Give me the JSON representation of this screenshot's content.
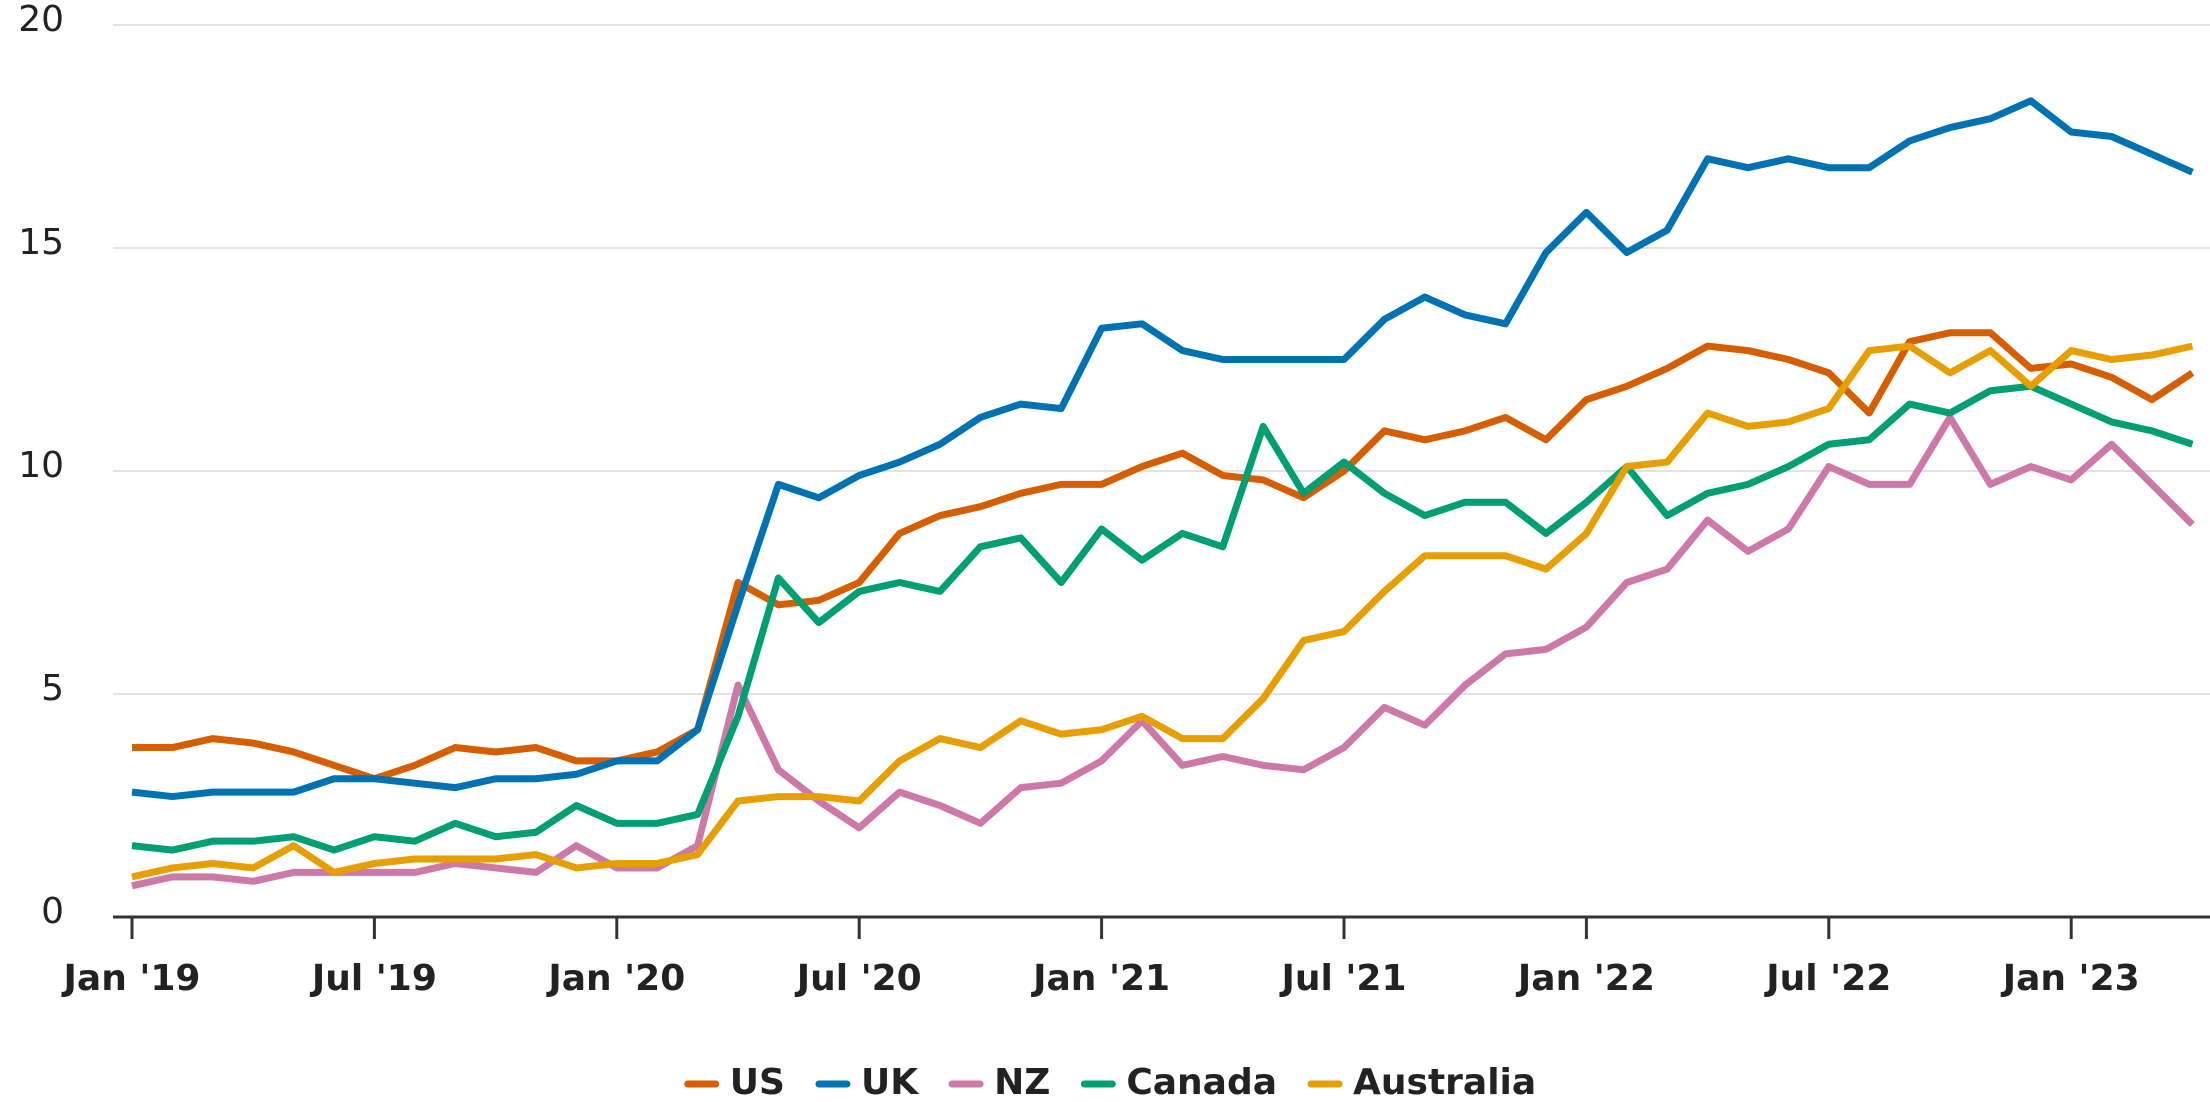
{
  "chart_data": {
    "type": "line",
    "x": [
      "2019-01",
      "2019-02",
      "2019-03",
      "2019-04",
      "2019-05",
      "2019-06",
      "2019-07",
      "2019-08",
      "2019-09",
      "2019-10",
      "2019-11",
      "2019-12",
      "2020-01",
      "2020-02",
      "2020-03",
      "2020-04",
      "2020-05",
      "2020-06",
      "2020-07",
      "2020-08",
      "2020-09",
      "2020-10",
      "2020-11",
      "2020-12",
      "2021-01",
      "2021-02",
      "2021-03",
      "2021-04",
      "2021-05",
      "2021-06",
      "2021-07",
      "2021-08",
      "2021-09",
      "2021-10",
      "2021-11",
      "2021-12",
      "2022-01",
      "2022-02",
      "2022-03",
      "2022-04",
      "2022-05",
      "2022-06",
      "2022-07",
      "2022-08",
      "2022-09",
      "2022-10",
      "2022-11",
      "2022-12",
      "2023-01",
      "2023-02",
      "2023-03",
      "2023-04"
    ],
    "xticks": [
      {
        "value": "2019-01",
        "label": "Jan '19"
      },
      {
        "value": "2019-07",
        "label": "Jul '19"
      },
      {
        "value": "2020-01",
        "label": "Jan '20"
      },
      {
        "value": "2020-07",
        "label": "Jul '20"
      },
      {
        "value": "2021-01",
        "label": "Jan '21"
      },
      {
        "value": "2021-07",
        "label": "Jul '21"
      },
      {
        "value": "2022-01",
        "label": "Jan '22"
      },
      {
        "value": "2022-07",
        "label": "Jul '22"
      },
      {
        "value": "2023-01",
        "label": "Jan '23"
      }
    ],
    "ylim": [
      0,
      20
    ],
    "yticks": [
      0,
      5,
      10,
      15,
      20
    ],
    "grid": true,
    "series": [
      {
        "name": "US",
        "color": "#d55e00",
        "values": [
          3.8,
          3.8,
          4.0,
          3.9,
          3.7,
          3.4,
          3.1,
          3.4,
          3.8,
          3.7,
          3.8,
          3.5,
          3.5,
          3.7,
          4.2,
          7.5,
          7.0,
          7.1,
          7.5,
          8.6,
          9.0,
          9.2,
          9.5,
          9.7,
          9.7,
          10.1,
          10.4,
          9.9,
          9.8,
          9.4,
          10.0,
          10.9,
          10.7,
          10.9,
          11.2,
          10.7,
          11.6,
          11.9,
          12.3,
          12.8,
          12.7,
          12.5,
          12.2,
          11.3,
          12.9,
          13.1,
          13.1,
          12.3,
          12.4,
          12.1,
          11.6,
          12.2
        ]
      },
      {
        "name": "UK",
        "color": "#0072b2",
        "values": [
          2.8,
          2.7,
          2.8,
          2.8,
          2.8,
          3.1,
          3.1,
          3.0,
          2.9,
          3.1,
          3.1,
          3.2,
          3.5,
          3.5,
          4.2,
          7.0,
          9.7,
          9.4,
          9.9,
          10.2,
          10.6,
          11.2,
          11.5,
          11.4,
          13.2,
          13.3,
          12.7,
          12.5,
          12.5,
          12.5,
          12.5,
          13.4,
          13.9,
          13.5,
          13.3,
          14.9,
          15.8,
          14.9,
          15.4,
          17.0,
          16.8,
          17.0,
          16.8,
          16.8,
          17.4,
          17.7,
          17.9,
          18.3,
          17.6,
          17.5,
          17.1,
          16.7
        ]
      },
      {
        "name": "NZ",
        "color": "#cc79a7",
        "values": [
          0.7,
          0.9,
          0.9,
          0.8,
          1.0,
          1.0,
          1.0,
          1.0,
          1.2,
          1.1,
          1.0,
          1.6,
          1.1,
          1.1,
          1.6,
          5.2,
          3.3,
          2.6,
          2.0,
          2.8,
          2.5,
          2.1,
          2.9,
          3.0,
          3.5,
          4.4,
          3.4,
          3.6,
          3.4,
          3.3,
          3.8,
          4.7,
          4.3,
          5.2,
          5.9,
          6.0,
          6.5,
          7.5,
          7.8,
          8.9,
          8.2,
          8.7,
          10.1,
          9.7,
          9.7,
          11.2,
          9.7,
          10.1,
          9.8,
          10.6,
          9.7,
          8.8
        ]
      },
      {
        "name": "Canada",
        "color": "#009e73",
        "values": [
          1.6,
          1.5,
          1.7,
          1.7,
          1.8,
          1.5,
          1.8,
          1.7,
          2.1,
          1.8,
          1.9,
          2.5,
          2.1,
          2.1,
          2.3,
          4.5,
          7.6,
          6.6,
          7.3,
          7.5,
          7.3,
          8.3,
          8.5,
          7.5,
          8.7,
          8.0,
          8.6,
          8.3,
          11.0,
          9.5,
          10.2,
          9.5,
          9.0,
          9.3,
          9.3,
          8.6,
          9.3,
          10.1,
          9.0,
          9.5,
          9.7,
          10.1,
          10.6,
          10.7,
          11.5,
          11.3,
          11.8,
          11.9,
          11.5,
          11.1,
          10.9,
          10.6
        ]
      },
      {
        "name": "Australia",
        "color": "#e69f00",
        "values": [
          0.9,
          1.1,
          1.2,
          1.1,
          1.6,
          1.0,
          1.2,
          1.3,
          1.3,
          1.3,
          1.4,
          1.1,
          1.2,
          1.2,
          1.4,
          2.6,
          2.7,
          2.7,
          2.6,
          3.5,
          4.0,
          3.8,
          4.4,
          4.1,
          4.2,
          4.5,
          4.0,
          4.0,
          4.9,
          6.2,
          6.4,
          7.3,
          8.1,
          8.1,
          8.1,
          7.8,
          8.6,
          10.1,
          10.2,
          11.3,
          11.0,
          11.1,
          11.4,
          12.7,
          12.8,
          12.2,
          12.7,
          11.9,
          12.7,
          12.5,
          12.6,
          12.8
        ]
      }
    ]
  }
}
